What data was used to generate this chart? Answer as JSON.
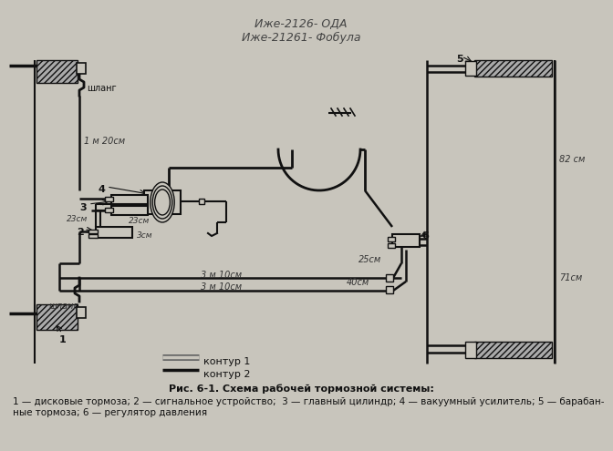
{
  "bg_color": "#c8c5bc",
  "title_line1": "Иже-2126- ОДА",
  "title_line2": "Иже-21261- Фобула",
  "fig_caption": "Рис. 6-1. Схема рабочей тормозной системы:",
  "legend_kontyr1": "контур 1",
  "legend_kontyr2": "контур 2",
  "caption_text": "1 — дисковые тормоза; 2 — сигнальное устройство;  3 — главный цилиндр; 4 — вакуумный усилитель; 5 — барабан-\nные тормоза; 6 — регулятор давления",
  "label_shlang_top": "шланг",
  "label_1m20cm": "1 м 20см",
  "label_23sm_left": "23см",
  "label_23sm_right": "23см",
  "label_3sm": "3см",
  "label_25sm": "25см",
  "label_40sm": "40см",
  "label_82sm": "82 см",
  "label_71sm": "71см",
  "label_3m10sm_top": "3 м 10см",
  "label_3m10sm_bot": "3 м 10см",
  "label_shlang_bot": "шланг",
  "label_5": "5",
  "label_6": "6",
  "label_4": "4",
  "label_3": "3",
  "label_2": "2",
  "label_1": "1",
  "lc": "#111111",
  "tc": "#111111"
}
